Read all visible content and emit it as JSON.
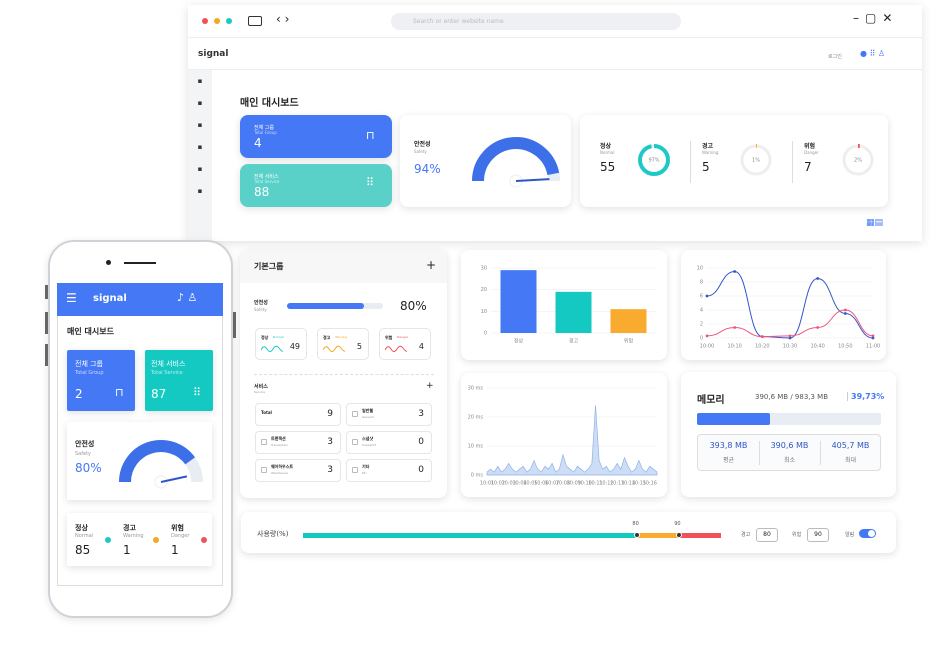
{
  "browser": {
    "search_placeholder": "Search or enter website name"
  },
  "header": {
    "logo": "signal",
    "login": "로그인"
  },
  "dashboard": {
    "title": "매인 대시보드",
    "total_group": {
      "label": "전체 그룹",
      "sub": "Total Group",
      "value": 4
    },
    "total_service": {
      "label": "전체 서비스",
      "sub": "Total Service",
      "value": 88
    },
    "safety": {
      "label": "안전성",
      "sub": "Safety",
      "value": 94,
      "value_label": "94%"
    },
    "status": [
      {
        "label": "정상",
        "sub": "Normal",
        "count": 55,
        "percent": 97,
        "percent_label": "97%",
        "color": "#1ec8c8"
      },
      {
        "label": "경고",
        "sub": "Warning",
        "count": 5,
        "percent": 1,
        "percent_label": "1%",
        "color": "#f5a623"
      },
      {
        "label": "위험",
        "sub": "Danger",
        "count": 7,
        "percent": 2,
        "percent_label": "2%",
        "color": "#f0525a"
      }
    ]
  },
  "group": {
    "title": "기본그룹",
    "safety": {
      "label": "안전성",
      "sub": "Safety",
      "value": 80,
      "value_label": "80%"
    },
    "status": [
      {
        "label": "정상",
        "sub": "Normal",
        "count": 49,
        "color": "#1ec8c8"
      },
      {
        "label": "경고",
        "sub": "Warning",
        "count": 5,
        "color": "#f5a623"
      },
      {
        "label": "위험",
        "sub": "Danger",
        "count": 4,
        "color": "#f0525a"
      }
    ],
    "service_title": "서비스",
    "service_sub": "Service",
    "services": [
      {
        "name": "Total",
        "count": 9
      },
      {
        "name": "일반웹",
        "sub": "General",
        "count": 3
      },
      {
        "name": "트랜잭션",
        "sub": "Transaction",
        "count": 3
      },
      {
        "name": "스냅샷",
        "sub": "Snapshot",
        "count": 0
      },
      {
        "name": "웨어하우스트",
        "sub": "Warehouse",
        "count": 3
      },
      {
        "name": "기타",
        "sub": "Etc",
        "count": 0
      }
    ]
  },
  "chart_data": [
    {
      "type": "bar",
      "categories": [
        "정상",
        "경고",
        "위험"
      ],
      "values": [
        29,
        19,
        11
      ],
      "colors": [
        "#4478f5",
        "#14c9c2",
        "#f8ab2e"
      ],
      "ylim": [
        0,
        30
      ],
      "yticks": [
        0,
        10,
        20,
        30
      ],
      "grid": true
    },
    {
      "type": "line",
      "categories": [
        "10:00",
        "10:10",
        "10:20",
        "10:30",
        "10:40",
        "10:50",
        "11:00"
      ],
      "series": [
        {
          "name": "Normal",
          "color": "#2f55c8",
          "values": [
            6,
            9.5,
            0.2,
            0,
            8.5,
            3.5,
            0
          ]
        },
        {
          "name": "Danger",
          "color": "#f0527a",
          "values": [
            0.3,
            1.5,
            0.2,
            0.3,
            1.5,
            4,
            0.3
          ]
        }
      ],
      "ylim": [
        0,
        10
      ],
      "yticks": [
        0,
        2,
        4,
        6,
        8,
        10
      ],
      "grid": true
    },
    {
      "type": "area",
      "color": "#8fb3e8",
      "categories": [
        "10:01",
        null,
        null,
        "10:02",
        null,
        null,
        "10:03",
        null,
        null,
        "10:04",
        null,
        null,
        "10:05",
        null,
        null,
        "10:06",
        null,
        null,
        "10:07",
        null,
        null,
        "10:08",
        null,
        null,
        "10:09",
        null,
        null,
        "10:10",
        null,
        null,
        "10:11",
        null,
        null,
        "10:12",
        null,
        null,
        "10:13",
        null,
        null,
        "10:14",
        null,
        null,
        "10:15",
        null,
        null,
        "10:16",
        null,
        null
      ],
      "values": [
        1,
        2,
        1,
        3,
        1,
        2,
        4,
        2,
        1,
        2,
        3,
        1,
        2,
        5,
        2,
        1,
        3,
        2,
        4,
        1,
        2,
        7,
        3,
        2,
        1,
        3,
        2,
        1,
        2,
        4,
        24,
        5,
        2,
        3,
        1,
        2,
        4,
        2,
        6,
        3,
        1,
        2,
        5,
        2,
        1,
        3,
        2,
        1
      ],
      "ylim": [
        0,
        30
      ],
      "yticks": [
        {
          "value": 0,
          "label": "0 ms"
        },
        {
          "value": 10,
          "label": "10 ms"
        },
        {
          "value": 20,
          "label": "20 ms"
        },
        {
          "value": 30,
          "label": "30 ms"
        }
      ],
      "grid": true
    }
  ],
  "memory": {
    "title": "메모리",
    "usage_text": "390,6 MB / 983,3 MB",
    "percent": 39.73,
    "percent_label": "39,73%",
    "stats": [
      {
        "value": "393,8 MB",
        "label": "평균"
      },
      {
        "value": "390,6 MB",
        "label": "최소"
      },
      {
        "value": "405,7 MB",
        "label": "최대"
      }
    ]
  },
  "usage": {
    "label": "사용량(%)",
    "warning": 80,
    "danger": 90,
    "warning_label": "경고",
    "danger_label": "위험",
    "alert_label": "알림"
  },
  "mobile": {
    "logo": "signal",
    "title": "매인 대시보드",
    "total_group": {
      "label": "전체 그룹",
      "sub": "Total Group",
      "value": 2
    },
    "total_service": {
      "label": "전체 서비스",
      "sub": "Total Service",
      "value": 87
    },
    "safety": {
      "label": "안전성",
      "sub": "Safety",
      "value": 80,
      "value_label": "80%"
    },
    "status": [
      {
        "label": "정상",
        "sub": "Normal",
        "count": 85,
        "color": "#1ec8c8"
      },
      {
        "label": "경고",
        "sub": "Warning",
        "count": 1,
        "color": "#f5a623"
      },
      {
        "label": "위험",
        "sub": "Danger",
        "count": 1,
        "color": "#f0525a"
      }
    ]
  }
}
